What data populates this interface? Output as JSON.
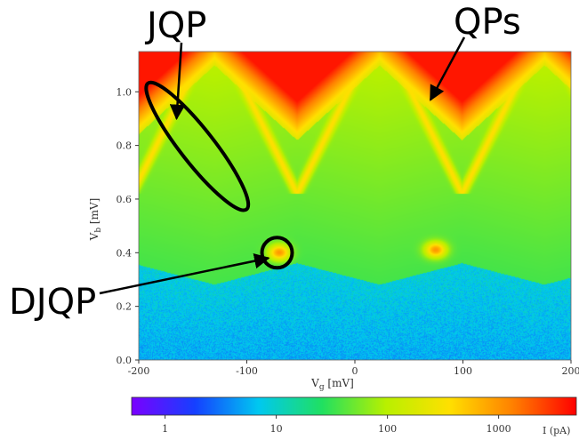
{
  "chart_data": {
    "type": "heatmap",
    "xlabel": "V_g [mV]",
    "ylabel": "V_b [mV]",
    "xlim": [
      -200,
      200
    ],
    "ylim": [
      0.0,
      1.15
    ],
    "x_ticks": [
      {
        "value": -200,
        "label": "-200"
      },
      {
        "value": -100,
        "label": "-100"
      },
      {
        "value": 0,
        "label": "0"
      },
      {
        "value": 100,
        "label": "100"
      },
      {
        "value": 200,
        "label": "200"
      }
    ],
    "y_ticks": [
      {
        "value": 0.0,
        "label": "0.0"
      },
      {
        "value": 0.2,
        "label": "0.2"
      },
      {
        "value": 0.4,
        "label": "0.4"
      },
      {
        "value": 0.6,
        "label": "0.6"
      },
      {
        "value": 0.8,
        "label": "0.8"
      },
      {
        "value": 1.0,
        "label": "1.0"
      }
    ],
    "gate_period_mV": 153,
    "gate_offset_mV": -130,
    "qp_threshold_mV": [
      0.82,
      1.1
    ],
    "background_edge_mV": [
      0.28,
      0.36
    ],
    "jqp_line_range_mV": [
      0.62,
      1.05
    ],
    "djqp_spots": [
      {
        "x": -70,
        "y": 0.4
      },
      {
        "x": 75,
        "y": 0.41
      }
    ],
    "colorbar": {
      "label": "I (pA)",
      "scale": "log",
      "range": [
        0.5,
        5000
      ],
      "ticks": [
        {
          "value": 1,
          "label": "1"
        },
        {
          "value": 10,
          "label": "10"
        },
        {
          "value": 100,
          "label": "100"
        },
        {
          "value": 1000,
          "label": "1000"
        }
      ],
      "colors": [
        "#7a00ff",
        "#1540ff",
        "#00c8f0",
        "#20e060",
        "#b8f000",
        "#ffe000",
        "#ff8000",
        "#ff0000"
      ]
    },
    "annotations": [
      {
        "label": "JQP",
        "target": {
          "x": -165,
          "y": 0.9
        },
        "shape": "ellipse",
        "shape_center": {
          "x": -150,
          "y": 0.78
        }
      },
      {
        "label": "QPs",
        "target": {
          "x": 70,
          "y": 0.97
        }
      },
      {
        "label": "DJQP",
        "target": {
          "x": -80,
          "y": 0.38
        },
        "shape": "circle",
        "shape_center": {
          "x": -72,
          "y": 0.4
        }
      }
    ]
  }
}
